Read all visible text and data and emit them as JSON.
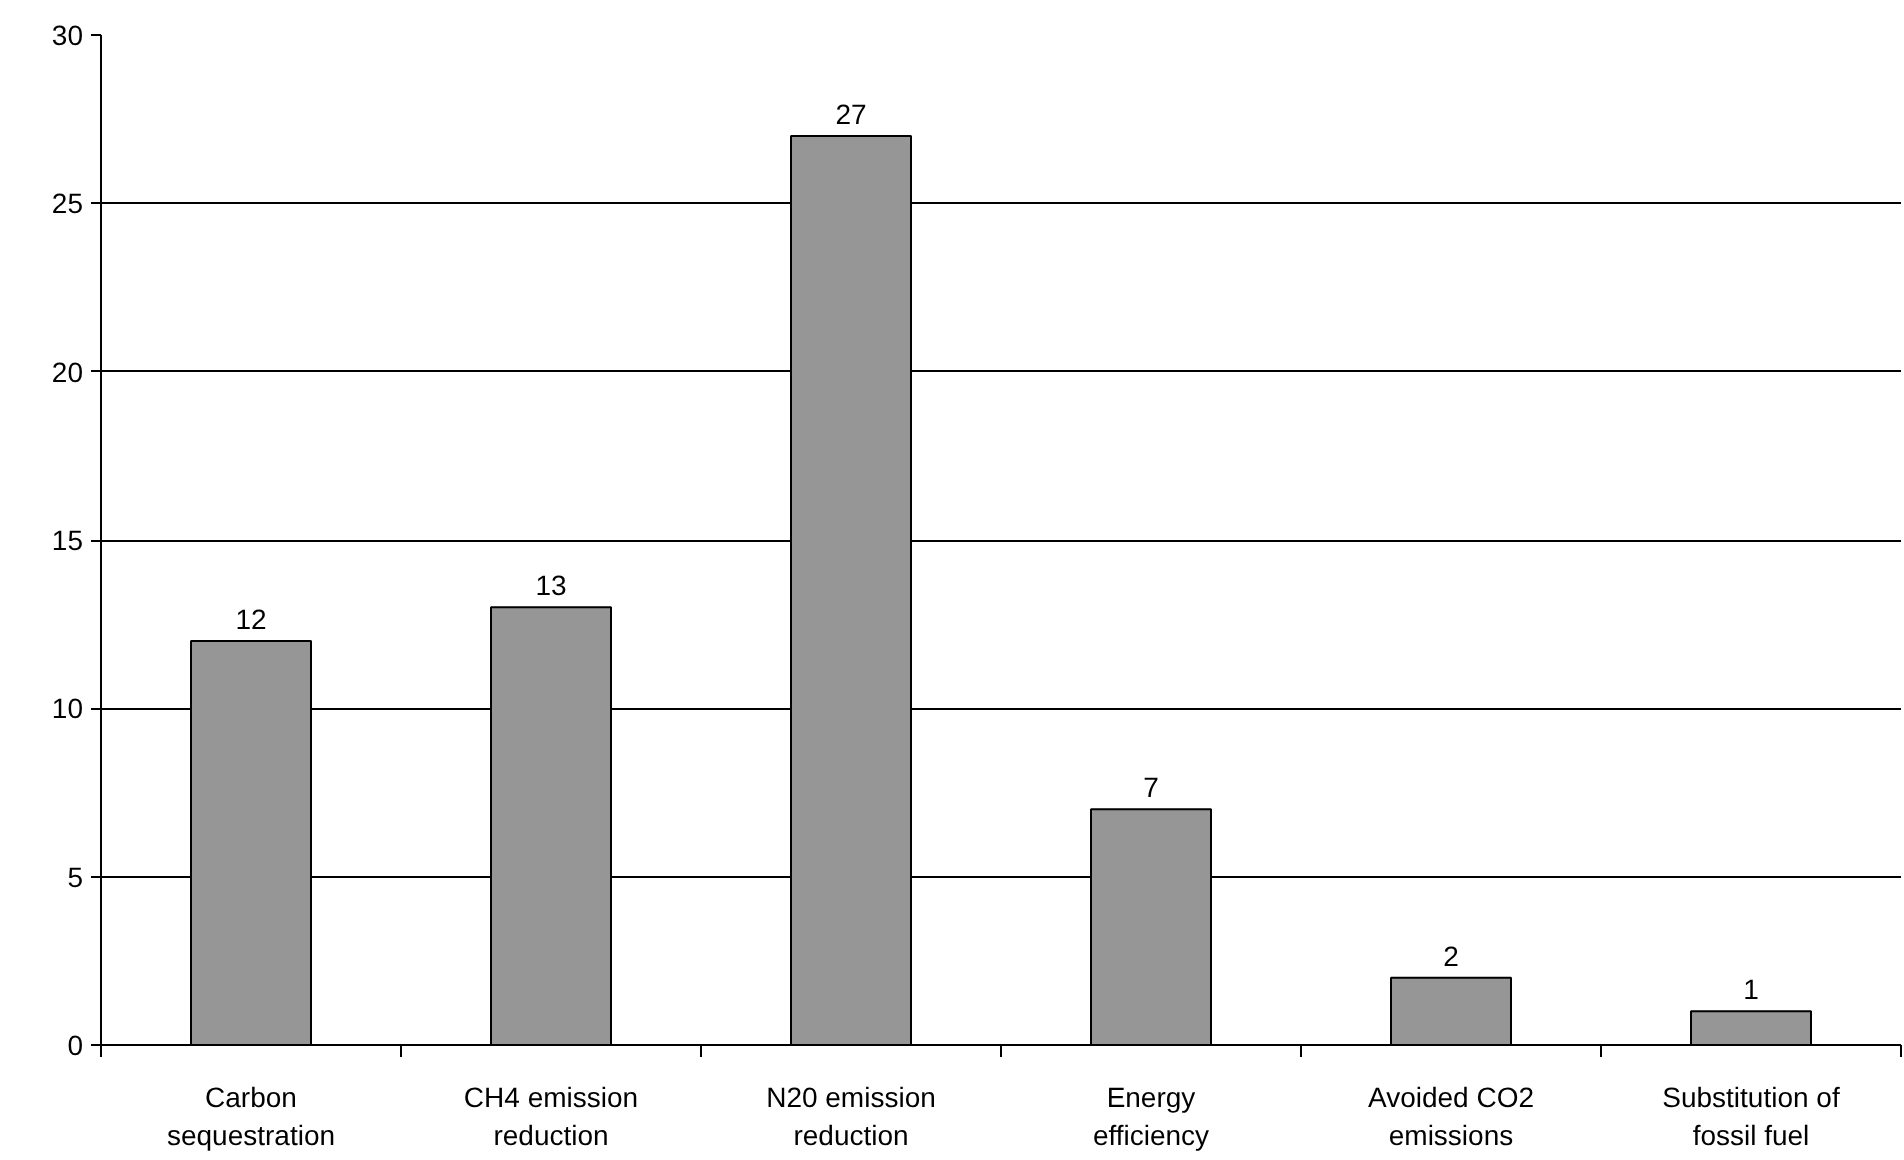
{
  "chart_data": {
    "type": "bar",
    "categories": [
      "Carbon sequestration",
      "CH4 emission reduction",
      "N20 emission reduction",
      "Energy efficiency",
      "Avoided CO2 emissions",
      "Substitution of fossil fuel"
    ],
    "values": [
      12,
      13,
      27,
      7,
      2,
      1
    ],
    "color": "#969696",
    "ylim": [
      0,
      30
    ],
    "yticks": [
      0,
      5,
      10,
      15,
      20,
      25,
      30
    ],
    "grid": "y",
    "data_labels": true
  }
}
